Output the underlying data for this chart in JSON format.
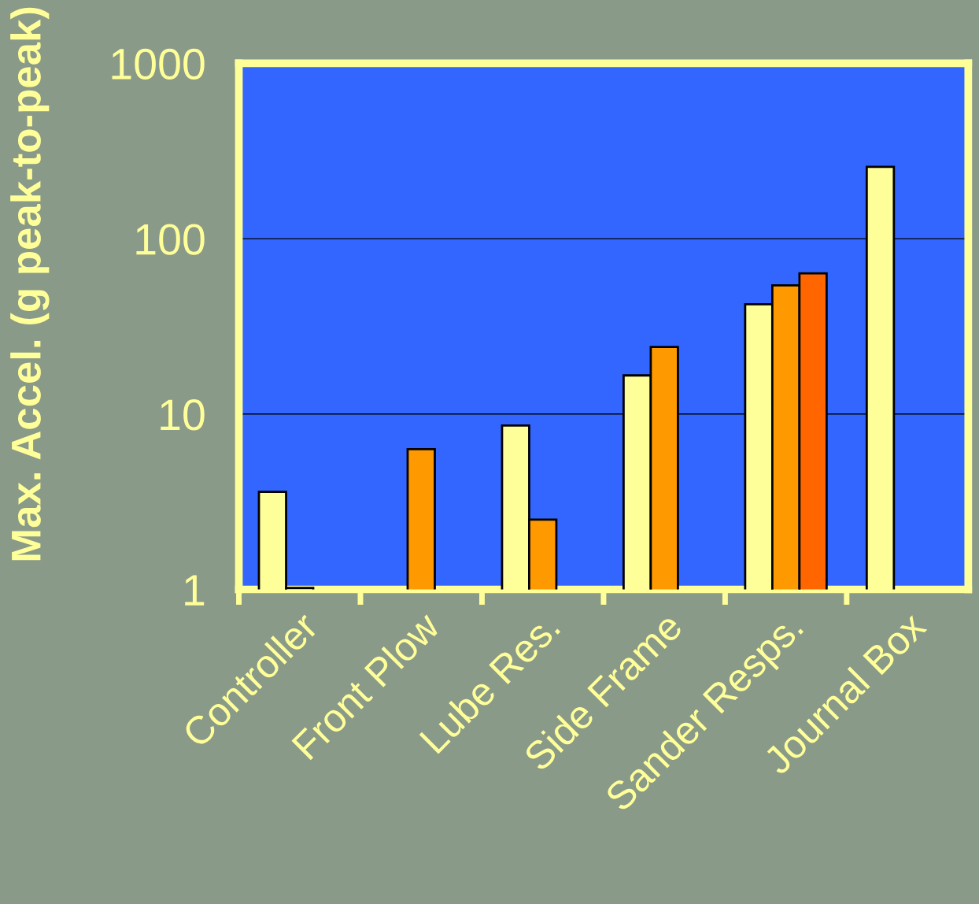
{
  "chart_data": {
    "type": "bar",
    "ylabel": "Max. Accel. (g peak-to-peak)",
    "categories": [
      "Controller",
      "Front Plow",
      "Lube Res.",
      "Side Frame",
      "Sander Resps.",
      "Journal Box"
    ],
    "series": [
      {
        "color": "#ffff99",
        "values": [
          3.6,
          null,
          8.6,
          16.6,
          42.3,
          257
        ]
      },
      {
        "color": "#ff9900",
        "values": [
          1.02,
          6.3,
          2.5,
          24.1,
          54.2,
          null
        ]
      },
      {
        "color": "#ff6600",
        "values": [
          null,
          null,
          null,
          null,
          63.4,
          null
        ]
      }
    ],
    "log": "y",
    "ylim": [
      1,
      1000
    ],
    "yticks": [
      1,
      10,
      100,
      1000
    ],
    "grid": "y",
    "legend": false
  }
}
